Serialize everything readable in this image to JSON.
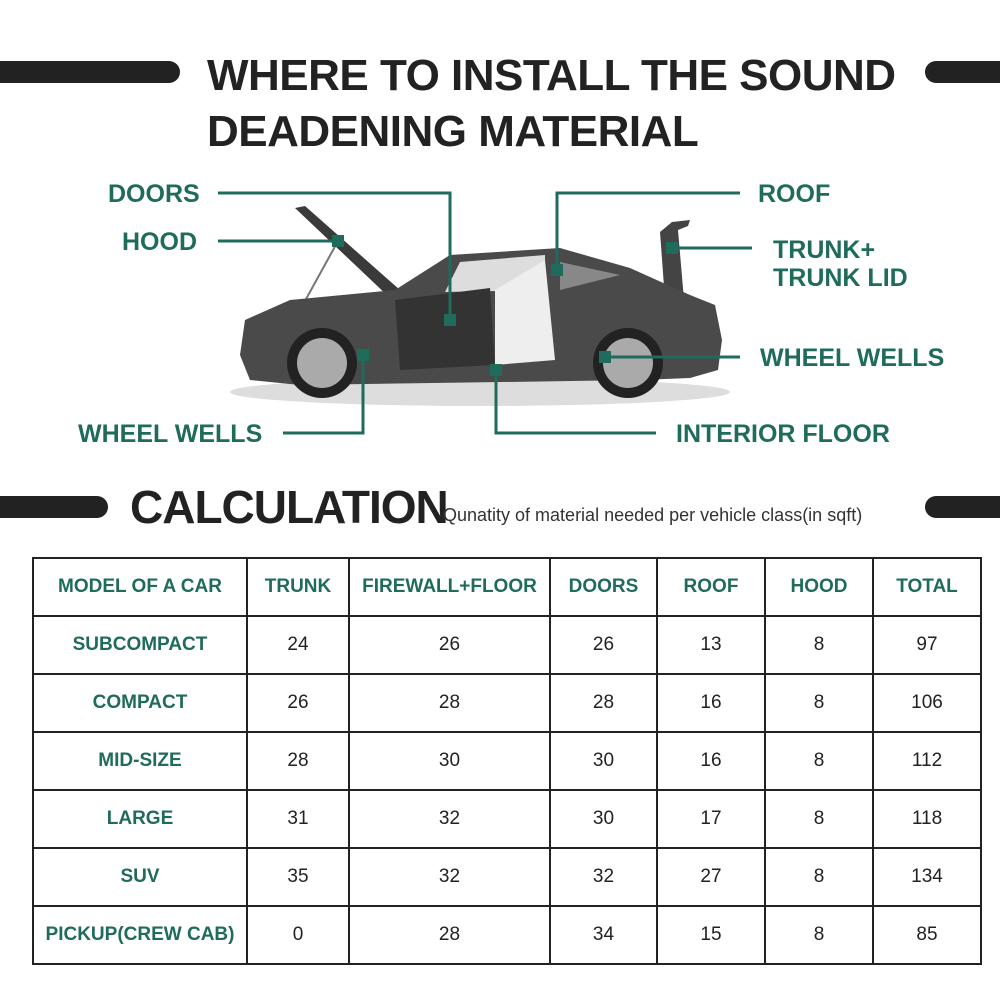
{
  "title": {
    "line1": "WHERE TO INSTALL THE SOUND",
    "line2": "DEADENING MATERIAL"
  },
  "labels": {
    "doors": "DOORS",
    "hood": "HOOD",
    "roof": "ROOF",
    "trunk1": "TRUNK+",
    "trunk2": "TRUNK LID",
    "wheel_wells_right": "WHEEL WELLS",
    "wheel_wells_left": "WHEEL WELLS",
    "interior_floor": "INTERIOR FLOOR"
  },
  "calculation": {
    "heading": "CALCULATION",
    "subtitle": "Qunatity of material needed per vehicle class(in sqft)"
  },
  "colors": {
    "accent": "#1f6b5c",
    "dark": "#222222"
  },
  "table": {
    "columns": [
      "MODEL OF A CAR",
      "TRUNK",
      "FIREWALL+FLOOR",
      "DOORS",
      "ROOF",
      "HOOD",
      "TOTAL"
    ],
    "rows": [
      [
        "SUBCOMPACT",
        "24",
        "26",
        "26",
        "13",
        "8",
        "97"
      ],
      [
        "COMPACT",
        "26",
        "28",
        "28",
        "16",
        "8",
        "106"
      ],
      [
        "MID-SIZE",
        "28",
        "30",
        "30",
        "16",
        "8",
        "112"
      ],
      [
        "LARGE",
        "31",
        "32",
        "30",
        "17",
        "8",
        "118"
      ],
      [
        "SUV",
        "35",
        "32",
        "32",
        "27",
        "8",
        "134"
      ],
      [
        "PICKUP(CREW CAB)",
        "0",
        "28",
        "34",
        "15",
        "8",
        "85"
      ]
    ]
  }
}
